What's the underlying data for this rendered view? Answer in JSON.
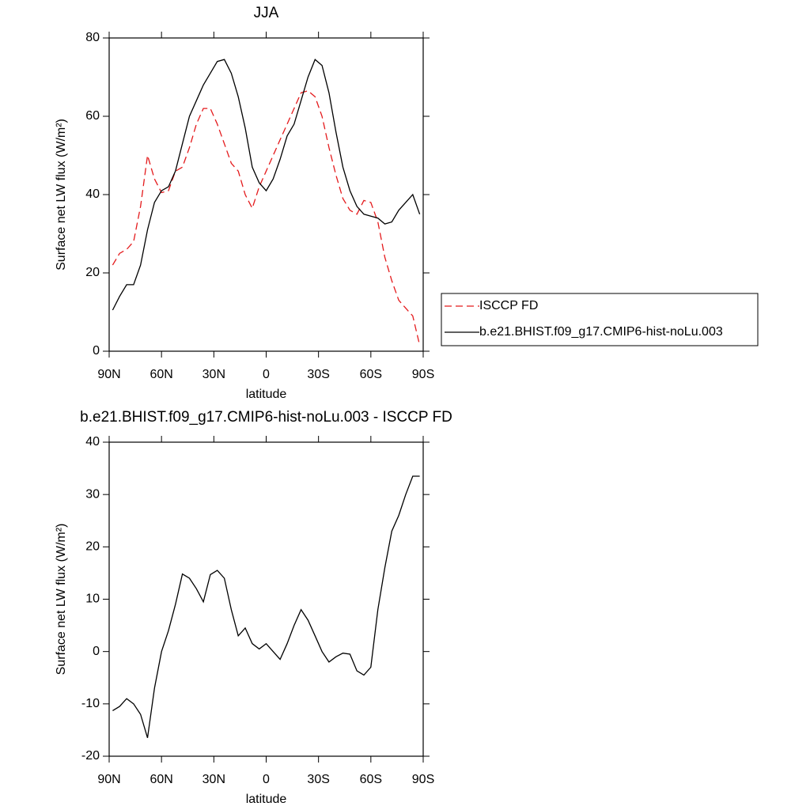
{
  "chart_data": [
    {
      "type": "line",
      "title": "JJA",
      "xlabel": "latitude",
      "ylabel": "Surface net LW flux (W/m²)",
      "x": [
        88,
        84,
        80,
        76,
        72,
        68,
        64,
        60,
        56,
        52,
        48,
        44,
        40,
        36,
        32,
        28,
        24,
        20,
        16,
        12,
        8,
        4,
        0,
        -4,
        -8,
        -12,
        -16,
        -20,
        -24,
        -28,
        -32,
        -36,
        -40,
        -44,
        -48,
        -52,
        -56,
        -60,
        -64,
        -68,
        -72,
        -76,
        -80,
        -84,
        -88
      ],
      "series": [
        {
          "name": "ISCCP FD",
          "color": "#e41a1c",
          "dash": true,
          "values": [
            22,
            25,
            26,
            28,
            37,
            50,
            44,
            40.5,
            41,
            46,
            47,
            52,
            58,
            62,
            62,
            58,
            53,
            48,
            46,
            40,
            36.5,
            42,
            46,
            50,
            54,
            58,
            62,
            66,
            66.5,
            65,
            60,
            52,
            45,
            39,
            36,
            35,
            38.5,
            38,
            33,
            24,
            18,
            13,
            11,
            9,
            1.5
          ]
        },
        {
          "name": "b.e21.BHIST.f09_g17.CMIP6-hist-noLu.003",
          "color": "#000000",
          "dash": false,
          "values": [
            10.5,
            14,
            17,
            17,
            22,
            31,
            38,
            41,
            42,
            46,
            53,
            60,
            64,
            68,
            71,
            74,
            74.5,
            71,
            65,
            57,
            47,
            43,
            41,
            44,
            49,
            55,
            58,
            64,
            70,
            74.5,
            73,
            66,
            56,
            47,
            41,
            37,
            35,
            34.5,
            34,
            32.5,
            33,
            36,
            38,
            40,
            35
          ]
        }
      ],
      "xlim": [
        90,
        -90
      ],
      "ylim": [
        0,
        80
      ],
      "xticks": [
        {
          "value": 90,
          "label": "90N"
        },
        {
          "value": 60,
          "label": "60N"
        },
        {
          "value": 30,
          "label": "30N"
        },
        0,
        {
          "value": -30,
          "label": "30S"
        },
        {
          "value": -60,
          "label": "60S"
        },
        {
          "value": -90,
          "label": "90S"
        }
      ],
      "yticks": [
        0,
        20,
        40,
        60,
        80
      ],
      "legend": "right"
    },
    {
      "type": "line",
      "title": "b.e21.BHIST.f09_g17.CMIP6-hist-noLu.003 - ISCCP FD",
      "xlabel": "latitude",
      "ylabel": "Surface net LW flux (W/m²)",
      "x": [
        88,
        84,
        80,
        76,
        72,
        68,
        64,
        60,
        56,
        52,
        48,
        44,
        40,
        36,
        32,
        28,
        24,
        20,
        16,
        12,
        8,
        4,
        0,
        -4,
        -8,
        -12,
        -16,
        -20,
        -24,
        -28,
        -32,
        -36,
        -40,
        -44,
        -48,
        -52,
        -56,
        -60,
        -64,
        -68,
        -72,
        -76,
        -80,
        -84,
        -88
      ],
      "series": [
        {
          "color": "#000000",
          "dash": false,
          "values": [
            -11.3,
            -10.5,
            -9,
            -10,
            -12,
            -16.5,
            -7,
            0,
            4,
            9,
            14.8,
            14,
            12,
            9.5,
            14.7,
            15.5,
            14,
            8,
            3,
            4.5,
            1.5,
            0.5,
            1.5,
            0,
            -1.5,
            1.5,
            5,
            8,
            6,
            3,
            0,
            -2,
            -1,
            -0.3,
            -0.5,
            -3.7,
            -4.5,
            -3,
            8,
            16,
            23,
            26,
            30,
            33.5,
            33.5
          ]
        }
      ],
      "xlim": [
        90,
        -90
      ],
      "ylim": [
        -20,
        40
      ],
      "xticks": [
        {
          "value": 90,
          "label": "90N"
        },
        {
          "value": 60,
          "label": "60N"
        },
        {
          "value": 30,
          "label": "30N"
        },
        0,
        {
          "value": -30,
          "label": "30S"
        },
        {
          "value": -60,
          "label": "60S"
        },
        {
          "value": -90,
          "label": "90S"
        }
      ],
      "yticks": [
        -20,
        -10,
        0,
        10,
        20,
        30,
        40
      ]
    }
  ]
}
